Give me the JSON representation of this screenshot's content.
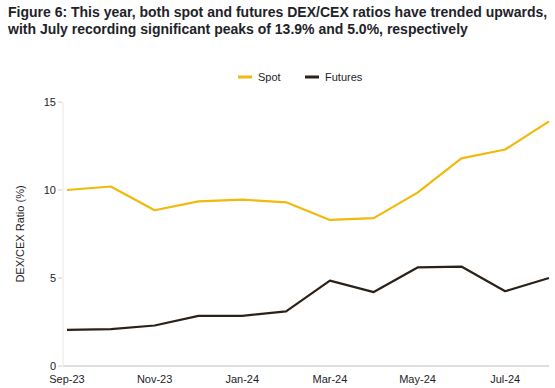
{
  "chart_data": {
    "type": "line",
    "title": "Figure 6: This year, both spot and futures DEX/CEX ratios have trended upwards, with July recording significant peaks of 13.9% and 5.0%, respectively",
    "y_label": "DEX/CEX Ratio (%)",
    "categories": [
      "Sep-23",
      null,
      "Nov-23",
      null,
      "Jan-24",
      null,
      "Mar-24",
      null,
      "May-24",
      null,
      "Jul-24",
      null
    ],
    "series": [
      {
        "name": "Spot",
        "color": "#f0b90b",
        "values": [
          10.0,
          10.2,
          8.85,
          9.35,
          9.45,
          9.3,
          8.3,
          8.4,
          9.85,
          11.8,
          12.3,
          13.9
        ]
      },
      {
        "name": "Futures",
        "color": "#2b2118",
        "values": [
          2.05,
          2.1,
          2.3,
          2.85,
          2.85,
          3.1,
          4.85,
          4.2,
          5.6,
          5.65,
          4.25,
          5.0
        ]
      }
    ],
    "ylim": [
      0,
      15
    ],
    "yticks": [
      0,
      5,
      10,
      15
    ],
    "grid": false,
    "legend": "top"
  }
}
